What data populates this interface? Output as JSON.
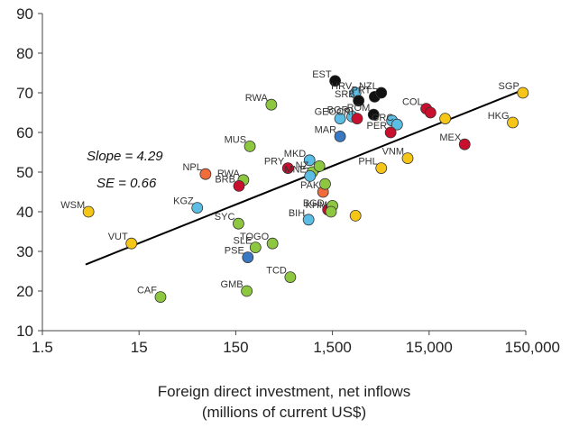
{
  "chart_data": {
    "type": "scatter",
    "xlabel_lines": [
      "Foreign direct investment, net inflows",
      "(millions of current US$)"
    ],
    "ylabel": "",
    "xscale": "log",
    "xlim": [
      1.5,
      150000
    ],
    "ylim": [
      10,
      90
    ],
    "xticks": [
      1.5,
      15,
      150,
      1500,
      15000,
      150000
    ],
    "xtick_labels": [
      "1.5",
      "15",
      "150",
      "1,500",
      "15,000",
      "150,000"
    ],
    "yticks": [
      10,
      20,
      30,
      40,
      50,
      60,
      70,
      80,
      90
    ],
    "ytick_labels": [
      "10",
      "20",
      "30",
      "40",
      "50",
      "60",
      "70",
      "80",
      "90"
    ],
    "grid": false,
    "annotations": [
      "Slope = 4.29",
      "SE = 0.66"
    ],
    "trendline": {
      "x": [
        4.2,
        150000
      ],
      "y": [
        26.7,
        71.0
      ]
    },
    "colors": {
      "yellow": "#f5c518",
      "green": "#8dc63f",
      "lightblue": "#5bbde4",
      "blue": "#3a78c3",
      "red": "#c8102e",
      "orange": "#f26b3a",
      "black": "#111111"
    },
    "points": [
      {
        "label": "WSM",
        "x": 4.5,
        "y": 40.0,
        "color": "yellow"
      },
      {
        "label": "VUT",
        "x": 12.5,
        "y": 32.0,
        "color": "yellow"
      },
      {
        "label": "CAF",
        "x": 25,
        "y": 18.5,
        "color": "green"
      },
      {
        "label": "KGZ",
        "x": 60,
        "y": 41.0,
        "color": "lightblue"
      },
      {
        "label": "NPL",
        "x": 73,
        "y": 49.5,
        "color": "orange"
      },
      {
        "label": "SYC",
        "x": 160,
        "y": 37.0,
        "color": "green"
      },
      {
        "label": "RWA",
        "x": 180,
        "y": 48.0,
        "color": "green"
      },
      {
        "label": "BRB",
        "x": 162,
        "y": 46.5,
        "color": "red"
      },
      {
        "label": "MUS",
        "x": 210,
        "y": 56.5,
        "color": "green"
      },
      {
        "label": "RWA",
        "x": 350,
        "y": 67.0,
        "color": "green"
      },
      {
        "label": "SLE",
        "x": 240,
        "y": 31.0,
        "color": "green"
      },
      {
        "label": "TOGO",
        "x": 360,
        "y": 32.0,
        "color": "green"
      },
      {
        "label": "PSE",
        "x": 200,
        "y": 28.5,
        "color": "blue"
      },
      {
        "label": "GMB",
        "x": 195,
        "y": 20.0,
        "color": "green"
      },
      {
        "label": "TCD",
        "x": 550,
        "y": 23.5,
        "color": "green"
      },
      {
        "label": "BIH",
        "x": 850,
        "y": 38.0,
        "color": "lightblue"
      },
      {
        "label": "PRY",
        "x": 520,
        "y": 51.0,
        "color": "red"
      },
      {
        "label": "MKD",
        "x": 870,
        "y": 53.0,
        "color": "lightblue"
      },
      {
        "label": "NZ",
        "x": 930,
        "y": 50.0,
        "color": "green"
      },
      {
        "label": "MNE",
        "x": 880,
        "y": 49.0,
        "color": "lightblue"
      },
      {
        "label": "PAK",
        "x": 1200,
        "y": 45.0,
        "color": "orange"
      },
      {
        "label": "",
        "x": 1260,
        "y": 47.0,
        "color": "green"
      },
      {
        "label": "",
        "x": 1100,
        "y": 51.5,
        "color": "green"
      },
      {
        "label": "BGD",
        "x": 1350,
        "y": 40.5,
        "color": "red"
      },
      {
        "label": "",
        "x": 1500,
        "y": 41.5,
        "color": "green"
      },
      {
        "label": "KHM",
        "x": 1450,
        "y": 40.0,
        "color": "green"
      },
      {
        "label": "",
        "x": 2600,
        "y": 39.0,
        "color": "yellow"
      },
      {
        "label": "EST",
        "x": 1600,
        "y": 73.0,
        "color": "black"
      },
      {
        "label": "HRV",
        "x": 2600,
        "y": 70.0,
        "color": "lightblue"
      },
      {
        "label": "SRB",
        "x": 2800,
        "y": 68.0,
        "color": "black"
      },
      {
        "label": "BGR",
        "x": 2400,
        "y": 64.0,
        "color": "lightblue"
      },
      {
        "label": "CRI",
        "x": 2700,
        "y": 63.5,
        "color": "red"
      },
      {
        "label": "GEO",
        "x": 1800,
        "y": 63.5,
        "color": "lightblue"
      },
      {
        "label": "MAR",
        "x": 1800,
        "y": 59.0,
        "color": "blue"
      },
      {
        "label": "PRT",
        "x": 4100,
        "y": 69.0,
        "color": "black"
      },
      {
        "label": "NZL",
        "x": 4800,
        "y": 70.0,
        "color": "black"
      },
      {
        "label": "ROM",
        "x": 4000,
        "y": 64.5,
        "color": "black"
      },
      {
        "label": "COL",
        "x": 14000,
        "y": 66.0,
        "color": "red"
      },
      {
        "label": "",
        "x": 6200,
        "y": 63.0,
        "color": "lightblue"
      },
      {
        "label": "",
        "x": 15500,
        "y": 65.0,
        "color": "red"
      },
      {
        "label": "GRC",
        "x": 7000,
        "y": 62.0,
        "color": "lightblue"
      },
      {
        "label": "PER",
        "x": 6000,
        "y": 60.0,
        "color": "red"
      },
      {
        "label": "MEX",
        "x": 35000,
        "y": 57.0,
        "color": "red"
      },
      {
        "label": "PHL",
        "x": 4800,
        "y": 51.0,
        "color": "yellow"
      },
      {
        "label": "VNM",
        "x": 9000,
        "y": 53.5,
        "color": "yellow"
      },
      {
        "label": "",
        "x": 22000,
        "y": 63.5,
        "color": "yellow"
      },
      {
        "label": "SGP",
        "x": 140000,
        "y": 70.0,
        "color": "yellow"
      },
      {
        "label": "HKG",
        "x": 110000,
        "y": 62.5,
        "color": "yellow"
      }
    ]
  }
}
